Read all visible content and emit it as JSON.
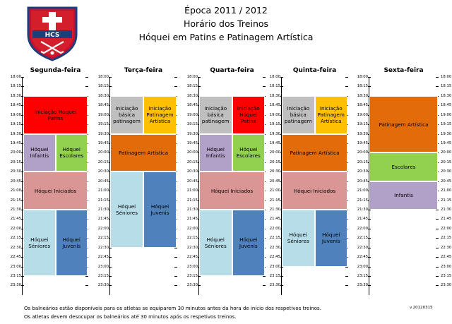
{
  "header": {
    "season": "Época 2011 / 2012",
    "schedule_title": "Horário dos Treinos",
    "subtitle": "Hóquei em Patins e Patinagem Artística",
    "logo_text": "HCS"
  },
  "colors": {
    "red": "#ff0000",
    "gray": "#bfbfbf",
    "yellow": "#ffc000",
    "purple": "#b1a0c7",
    "green": "#92d050",
    "orange": "#e26b0a",
    "pink": "#da9694",
    "lightblue": "#b7dee8",
    "blue": "#4f81bd"
  },
  "times": [
    "18:00",
    "18:15",
    "18:30",
    "18:45",
    "19:00",
    "19:15",
    "19:30",
    "19:45",
    "20:00",
    "20:15",
    "20:30",
    "20:45",
    "21:00",
    "21:15",
    "21:30",
    "21:45",
    "22:00",
    "22:15",
    "22:30",
    "22:45",
    "23:00",
    "23:15",
    "23:30"
  ],
  "days": [
    {
      "name": "Segunda-feira",
      "blocks": [
        {
          "label": "Iniciação Hóquei Patins",
          "start": "18:30",
          "end": "19:30",
          "col": "full",
          "color": "red"
        },
        {
          "label": "Hóquei Infantis",
          "start": "19:30",
          "end": "20:30",
          "col": "left",
          "color": "purple"
        },
        {
          "label": "Hóquei Escolares",
          "start": "19:30",
          "end": "20:30",
          "col": "right",
          "color": "green"
        },
        {
          "label": "Hóquei Iniciados",
          "start": "20:30",
          "end": "21:30",
          "col": "full",
          "color": "pink"
        },
        {
          "label": "Hóquei Séniores",
          "start": "21:30",
          "end": "23:15",
          "col": "left",
          "color": "lightblue"
        },
        {
          "label": "Hóquei Juvenis",
          "start": "21:30",
          "end": "23:15",
          "col": "right",
          "color": "blue"
        }
      ]
    },
    {
      "name": "Terça-feira",
      "blocks": [
        {
          "label": "Iniciação básica patinagem",
          "start": "18:30",
          "end": "19:30",
          "col": "left",
          "color": "gray"
        },
        {
          "label": "Iniciação Patinagem Artística",
          "start": "18:30",
          "end": "19:30",
          "col": "right",
          "color": "yellow"
        },
        {
          "label": "Patinagem Artística",
          "start": "19:30",
          "end": "20:30",
          "col": "full",
          "color": "orange"
        },
        {
          "label": "Hóquei Séniores",
          "start": "20:30",
          "end": "22:30",
          "col": "left",
          "color": "lightblue"
        },
        {
          "label": "Hóquei Juvenis",
          "start": "20:30",
          "end": "22:30",
          "col": "right",
          "color": "blue"
        }
      ]
    },
    {
      "name": "Quarta-feira",
      "blocks": [
        {
          "label": "Iniciação básica patinagem",
          "start": "18:30",
          "end": "19:30",
          "col": "left",
          "color": "gray"
        },
        {
          "label": "Iniciação Hóquei Patins",
          "start": "18:30",
          "end": "19:30",
          "col": "right",
          "color": "red"
        },
        {
          "label": "Hóquei Infantis",
          "start": "19:30",
          "end": "20:30",
          "col": "left",
          "color": "purple"
        },
        {
          "label": "Hóquei Escolares",
          "start": "19:30",
          "end": "20:30",
          "col": "right",
          "color": "green"
        },
        {
          "label": "Hóquei Iniciados",
          "start": "20:30",
          "end": "21:30",
          "col": "full",
          "color": "pink"
        },
        {
          "label": "Hóquei Séniores",
          "start": "21:30",
          "end": "23:15",
          "col": "left",
          "color": "lightblue"
        },
        {
          "label": "Hóquei Juvenis",
          "start": "21:30",
          "end": "23:15",
          "col": "right",
          "color": "blue"
        }
      ]
    },
    {
      "name": "Quinta-feira",
      "blocks": [
        {
          "label": "Iniciação básica patinagem",
          "start": "18:30",
          "end": "19:30",
          "col": "left",
          "color": "gray"
        },
        {
          "label": "Iniciação Patinagem Artística",
          "start": "18:30",
          "end": "19:30",
          "col": "right",
          "color": "yellow"
        },
        {
          "label": "Patinagem Artística",
          "start": "19:30",
          "end": "20:30",
          "col": "full",
          "color": "orange"
        },
        {
          "label": "Hóquei Iniciados",
          "start": "20:30",
          "end": "21:30",
          "col": "full",
          "color": "pink"
        },
        {
          "label": "Hóquei Séniores",
          "start": "21:30",
          "end": "23:00",
          "col": "left",
          "color": "lightblue"
        },
        {
          "label": "Hóquei Juvenis",
          "start": "21:30",
          "end": "23:00",
          "col": "right",
          "color": "blue"
        }
      ]
    },
    {
      "name": "Sexta-feira",
      "blocks": [
        {
          "label": "Patinagem Artística",
          "start": "18:30",
          "end": "20:00",
          "col": "full",
          "color": "orange"
        },
        {
          "label": "Escolares",
          "start": "20:00",
          "end": "20:45",
          "col": "full",
          "color": "green"
        },
        {
          "label": "Infantis",
          "start": "20:45",
          "end": "21:30",
          "col": "full",
          "color": "purple"
        }
      ]
    }
  ],
  "footer": {
    "note1": "Os balneários estão disponíveis para os atletas se equiparem 30 minutos antes da hora de início dos respetivos treinos.",
    "note2": "Os atletas devem desocupar os balneários até 30 minutos após os respetivos treinos.",
    "version": "v.20120315"
  }
}
